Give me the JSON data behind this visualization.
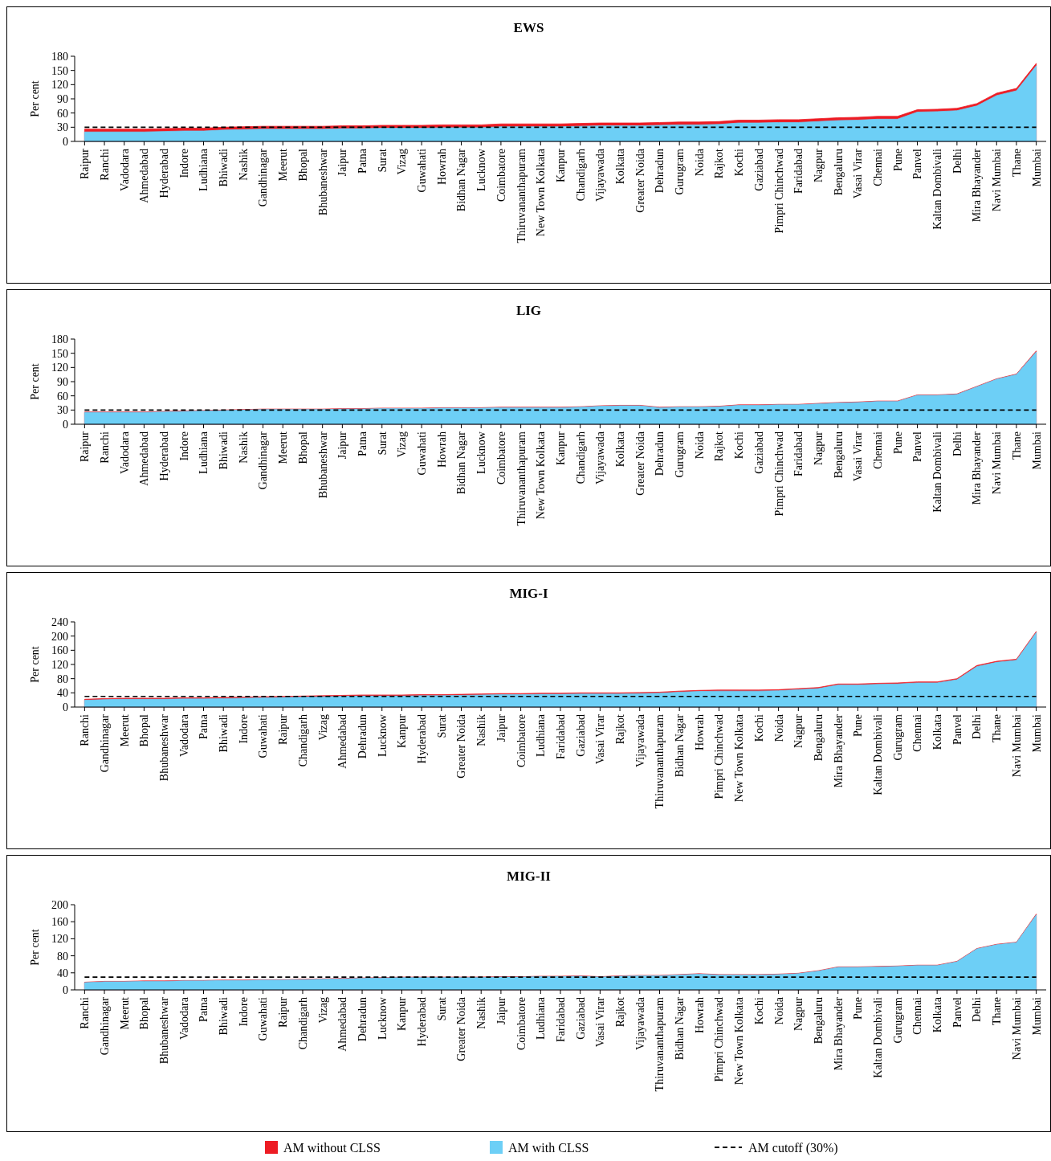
{
  "chart_data": [
    {
      "type": "area",
      "title": "EWS",
      "ylabel": "Per cent",
      "categories": [
        "Raipur",
        "Ranchi",
        "Vadodara",
        "Ahmedabad",
        "Hyderabad",
        "Indore",
        "Ludhiana",
        "Bhiwadi",
        "Nashik",
        "Gandhinagar",
        "Meerut",
        "Bhopal",
        "Bhubaneshwar",
        "Jaipur",
        "Patna",
        "Surat",
        "Vizag",
        "Guwahati",
        "Howrah",
        "Bidhan Nagar",
        "Lucknow",
        "Coimbatore",
        "Thiruvananthapuram",
        "New Town Kolkata",
        "Kanpur",
        "Chandigarh",
        "Vijayawada",
        "Kolkata",
        "Greater Noida",
        "Dehradun",
        "Gurugram",
        "Noida",
        "Rajkot",
        "Kochi",
        "Gaziabad",
        "Pimpri Chinchwad",
        "Faridabad",
        "Nagpur",
        "Bengaluru",
        "Vasai Virar",
        "Chennai",
        "Pune",
        "Panvel",
        "Kaltan Dombivali",
        "Delhi",
        "Mira Bhayander",
        "Navi Mumbai",
        "Thane",
        "Mumbai"
      ],
      "series": [
        {
          "color": "#ed1c24",
          "values": [
            26,
            26,
            26,
            26,
            27,
            28,
            28,
            30,
            31,
            32,
            32,
            32,
            32,
            33,
            33,
            34,
            34,
            34,
            35,
            35,
            35,
            37,
            37,
            37,
            37,
            38,
            39,
            39,
            39,
            40,
            41,
            41,
            42,
            45,
            45,
            46,
            46,
            48,
            50,
            51,
            53,
            53,
            67,
            68,
            70,
            80,
            102,
            112,
            165
          ]
        },
        {
          "color": "#6dcff6",
          "values": [
            20,
            20,
            20,
            20,
            21,
            22,
            22,
            24,
            25,
            26,
            26,
            26,
            26,
            27,
            27,
            28,
            28,
            28,
            29,
            29,
            29,
            31,
            31,
            31,
            31,
            32,
            33,
            33,
            33,
            34,
            35,
            35,
            36,
            39,
            39,
            40,
            40,
            42,
            44,
            45,
            47,
            47,
            62,
            63,
            65,
            75,
            97,
            107,
            160
          ]
        }
      ],
      "ylim": [
        0,
        180
      ],
      "yticks": [
        0,
        30,
        60,
        90,
        120,
        150,
        180
      ],
      "ref_lines": [
        {
          "axis": "y",
          "value": 30,
          "color": "#000000",
          "line_style": "dashed"
        }
      ]
    },
    {
      "type": "area",
      "title": "LIG",
      "ylabel": "Per cent",
      "categories": [
        "Raipur",
        "Ranchi",
        "Vadodara",
        "Ahmedabad",
        "Hyderabad",
        "Indore",
        "Ludhiana",
        "Bhiwadi",
        "Nashik",
        "Gandhinagar",
        "Meerut",
        "Bhopal",
        "Bhubaneshwar",
        "Jaipur",
        "Patna",
        "Surat",
        "Vizag",
        "Guwahati",
        "Howrah",
        "Bidhan Nagar",
        "Lucknow",
        "Coimbatore",
        "Thiruvananthapuram",
        "New Town Kolkata",
        "Kanpur",
        "Chandigarh",
        "Vijayawada",
        "Kolkata",
        "Greater Noida",
        "Dehradun",
        "Gurugram",
        "Noida",
        "Rajkot",
        "Kochi",
        "Gaziabad",
        "Pimpri Chinchwad",
        "Faridabad",
        "Nagpur",
        "Bengaluru",
        "Vasai Virar",
        "Chennai",
        "Pune",
        "Panvel",
        "Kaltan Dombivali",
        "Delhi",
        "Mira Bhayander",
        "Navi Mumbai",
        "Thane",
        "Mumbai"
      ],
      "series": [
        {
          "color": "#ed1c24",
          "values": [
            26,
            26,
            26,
            26,
            27,
            28,
            29,
            30,
            31,
            32,
            32,
            32,
            32,
            33,
            33,
            34,
            34,
            34,
            35,
            35,
            35,
            36,
            36,
            36,
            36,
            37,
            39,
            40,
            40,
            36,
            37,
            37,
            38,
            41,
            41,
            42,
            42,
            44,
            46,
            47,
            49,
            49,
            62,
            62,
            64,
            80,
            96,
            106,
            155
          ]
        },
        {
          "color": "#6dcff6",
          "values": [
            25,
            25,
            25,
            25,
            26,
            27,
            28,
            29,
            30,
            31,
            31,
            31,
            31,
            32,
            32,
            33,
            33,
            33,
            34,
            34,
            34,
            35,
            35,
            35,
            35,
            36,
            38,
            39,
            39,
            35,
            36,
            36,
            37,
            40,
            40,
            41,
            41,
            43,
            45,
            46,
            48,
            48,
            61,
            61,
            63,
            79,
            95,
            105,
            153
          ]
        }
      ],
      "ylim": [
        0,
        180
      ],
      "yticks": [
        0,
        30,
        60,
        90,
        120,
        150,
        180
      ],
      "ref_lines": [
        {
          "axis": "y",
          "value": 30,
          "color": "#000000",
          "line_style": "dashed"
        }
      ]
    },
    {
      "type": "area",
      "title": "MIG-I",
      "ylabel": "Per cent",
      "categories": [
        "Ranchi",
        "Gandhinagar",
        "Meerut",
        "Bhopal",
        "Bhubaneshwar",
        "Vadodara",
        "Patna",
        "Bhiwadi",
        "Indore",
        "Guwahati",
        "Raipur",
        "Chandigarh",
        "Vizag",
        "Ahmedabad",
        "Dehradun",
        "Lucknow",
        "Kanpur",
        "Hyderabad",
        "Surat",
        "Greater Noida",
        "Nashik",
        "Jaipur",
        "Coimbatore",
        "Ludhiana",
        "Faridabad",
        "Gaziabad",
        "Vasai Virar",
        "Rajkot",
        "Vijayawada",
        "Thiruvananthapuram",
        "Bidhan Nagar",
        "Howrah",
        "Pimpri Chinchwad",
        "New Town Kolkata",
        "Kochi",
        "Noida",
        "Nagpur",
        "Bengaluru",
        "Mira Bhayander",
        "Pune",
        "Kaltan Dombivali",
        "Gurugram",
        "Chennai",
        "Kolkata",
        "Panvel",
        "Delhi",
        "Thane",
        "Navi Mumbai",
        "Mumbai"
      ],
      "series": [
        {
          "color": "#ed1c24",
          "values": [
            22,
            24,
            25,
            25,
            25,
            26,
            26,
            27,
            28,
            29,
            30,
            31,
            32,
            33,
            34,
            34,
            34,
            35,
            35,
            36,
            37,
            38,
            38,
            39,
            39,
            40,
            40,
            40,
            41,
            42,
            45,
            47,
            48,
            48,
            48,
            49,
            52,
            55,
            65,
            65,
            67,
            68,
            71,
            71,
            80,
            117,
            129,
            135,
            213
          ]
        },
        {
          "color": "#6dcff6",
          "values": [
            19,
            21,
            22,
            22,
            22,
            23,
            23,
            24,
            25,
            26,
            27,
            28,
            29,
            30,
            31,
            31,
            31,
            32,
            32,
            33,
            34,
            35,
            35,
            36,
            36,
            37,
            37,
            37,
            38,
            39,
            42,
            44,
            45,
            45,
            45,
            46,
            49,
            52,
            62,
            62,
            64,
            65,
            68,
            68,
            77,
            114,
            126,
            132,
            210
          ]
        }
      ],
      "ylim": [
        0,
        240
      ],
      "yticks": [
        0,
        40,
        80,
        120,
        160,
        200,
        240
      ],
      "ref_lines": [
        {
          "axis": "y",
          "value": 30,
          "color": "#000000",
          "line_style": "dashed"
        }
      ]
    },
    {
      "type": "area",
      "title": "MIG-II",
      "ylabel": "Per cent",
      "legend": "bottom",
      "categories": [
        "Ranchi",
        "Gandhinagar",
        "Meerut",
        "Bhopal",
        "Bhubaneshwar",
        "Vadodara",
        "Patna",
        "Bhiwadi",
        "Indore",
        "Guwahati",
        "Raipur",
        "Chandigarh",
        "Vizag",
        "Ahmedabad",
        "Dehradun",
        "Lucknow",
        "Kanpur",
        "Hyderabad",
        "Surat",
        "Greater Noida",
        "Nashik",
        "Jaipur",
        "Coimbatore",
        "Ludhiana",
        "Faridabad",
        "Gaziabad",
        "Vasai Virar",
        "Rajkot",
        "Vijayawada",
        "Thiruvananthapuram",
        "Bidhan Nagar",
        "Howrah",
        "Pimpri Chinchwad",
        "New Town Kolkata",
        "Kochi",
        "Noida",
        "Nagpur",
        "Bengaluru",
        "Mira Bhayander",
        "Pune",
        "Kaltan Dombivali",
        "Gurugram",
        "Chennai",
        "Kolkata",
        "Panvel",
        "Delhi",
        "Thane",
        "Navi Mumbai",
        "Mumbai"
      ],
      "series": [
        {
          "name": "AM without CLSS",
          "color": "#ed1c24",
          "values": [
            18,
            20,
            20,
            21,
            21,
            22,
            22,
            23,
            23,
            24,
            24,
            25,
            26,
            27,
            28,
            29,
            30,
            30,
            30,
            30,
            30,
            31,
            31,
            32,
            32,
            33,
            31,
            33,
            34,
            34,
            36,
            38,
            36,
            36,
            36,
            37,
            39,
            45,
            54,
            54,
            55,
            56,
            58,
            58,
            67,
            97,
            107,
            112,
            178
          ]
        },
        {
          "name": "AM with CLSS",
          "color": "#6dcff6",
          "values": [
            17,
            19,
            19,
            20,
            20,
            21,
            21,
            22,
            22,
            23,
            23,
            24,
            25,
            26,
            27,
            28,
            29,
            29,
            29,
            29,
            29,
            30,
            30,
            31,
            31,
            32,
            30,
            32,
            33,
            33,
            35,
            37,
            35,
            35,
            35,
            36,
            38,
            44,
            53,
            53,
            54,
            55,
            57,
            57,
            66,
            96,
            106,
            111,
            176
          ]
        }
      ],
      "ylim": [
        0,
        200
      ],
      "yticks": [
        0,
        40,
        80,
        120,
        160,
        200
      ],
      "ref_lines": [
        {
          "axis": "y",
          "value": 30,
          "label": "AM cutoff (30%)",
          "color": "#000000",
          "line_style": "dashed"
        }
      ]
    }
  ]
}
